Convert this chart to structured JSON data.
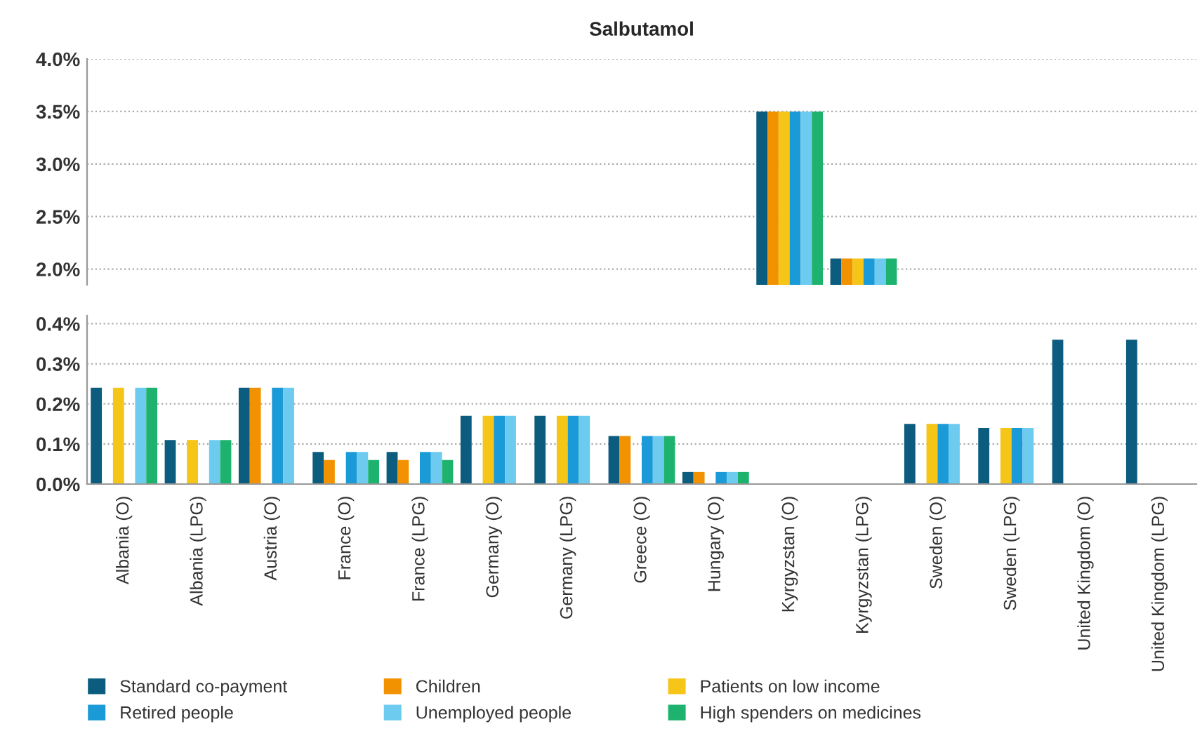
{
  "chart_data": [
    {
      "type": "bar",
      "title": "Salbutamol",
      "tick_labels": "y",
      "grid": "y",
      "categories": [
        null,
        null,
        null,
        null,
        null,
        null,
        null,
        null,
        null,
        null,
        null,
        null,
        null,
        null,
        null
      ],
      "series": [
        {
          "color": "#0b5c7e",
          "values": [
            null,
            null,
            null,
            null,
            null,
            null,
            null,
            null,
            null,
            3.5,
            2.1,
            null,
            null,
            null,
            null
          ]
        },
        {
          "color": "#f39200",
          "values": [
            null,
            null,
            null,
            null,
            null,
            null,
            null,
            null,
            null,
            3.5,
            2.1,
            null,
            null,
            null,
            null
          ]
        },
        {
          "color": "#f5c518",
          "values": [
            null,
            null,
            null,
            null,
            null,
            null,
            null,
            null,
            null,
            3.5,
            2.1,
            null,
            null,
            null,
            null
          ]
        },
        {
          "color": "#1a9ad6",
          "values": [
            null,
            null,
            null,
            null,
            null,
            null,
            null,
            null,
            null,
            3.5,
            2.1,
            null,
            null,
            null,
            null
          ]
        },
        {
          "color": "#6ccbef",
          "values": [
            null,
            null,
            null,
            null,
            null,
            null,
            null,
            null,
            null,
            3.5,
            2.1,
            null,
            null,
            null,
            null
          ]
        },
        {
          "color": "#1db36e",
          "values": [
            null,
            null,
            null,
            null,
            null,
            null,
            null,
            null,
            null,
            3.5,
            2.1,
            null,
            null,
            null,
            null
          ]
        }
      ],
      "ylim": [
        1.85,
        4.0
      ],
      "yticks": [
        {
          "value": 2.0,
          "label": "2.0%"
        },
        {
          "value": 2.5,
          "label": "2.5%"
        },
        {
          "value": 3.0,
          "label": "3.0%"
        },
        {
          "value": 3.5,
          "label": "3.5%"
        },
        {
          "value": 4.0,
          "label": "4.0%"
        }
      ]
    },
    {
      "type": "bar",
      "grid": "y",
      "legend": "bottom",
      "categories": [
        "Albania (O)",
        "Albania (LPG)",
        "Austria (O)",
        "France (O)",
        "France (LPG)",
        "Germany (O)",
        "Germany (LPG)",
        "Greece (O)",
        "Hungary (O)",
        "Kyrgyzstan (O)",
        "Kyrgyzstan (LPG)",
        "Sweden (O)",
        "Sweden (LPG)",
        "United Kingdom (O)",
        "United Kingdom (LPG)"
      ],
      "series": [
        {
          "name": "Standard co-payment",
          "color": "#0b5c7e",
          "values": [
            0.24,
            0.11,
            0.24,
            0.08,
            0.08,
            0.17,
            0.17,
            0.12,
            0.03,
            null,
            null,
            0.15,
            0.14,
            0.36,
            0.36
          ]
        },
        {
          "name": "Children",
          "color": "#f39200",
          "values": [
            null,
            null,
            0.24,
            0.06,
            0.06,
            null,
            null,
            0.12,
            0.03,
            null,
            null,
            null,
            null,
            null,
            null
          ]
        },
        {
          "name": "Patients on low income",
          "color": "#f5c518",
          "values": [
            0.24,
            0.11,
            null,
            null,
            null,
            0.17,
            0.17,
            null,
            null,
            null,
            null,
            0.15,
            0.14,
            null,
            null
          ]
        },
        {
          "name": "Retired people",
          "color": "#1a9ad6",
          "values": [
            null,
            null,
            0.24,
            0.08,
            0.08,
            0.17,
            0.17,
            0.12,
            0.03,
            null,
            null,
            0.15,
            0.14,
            null,
            null
          ]
        },
        {
          "name": "Unemployed people",
          "color": "#6ccbef",
          "values": [
            0.24,
            0.11,
            0.24,
            0.08,
            0.08,
            0.17,
            0.17,
            0.12,
            0.03,
            null,
            null,
            0.15,
            0.14,
            null,
            null
          ]
        },
        {
          "name": "High spenders on medicines",
          "color": "#1db36e",
          "values": [
            0.24,
            0.11,
            null,
            0.06,
            0.06,
            null,
            null,
            0.12,
            0.03,
            null,
            null,
            null,
            null,
            null,
            null
          ]
        }
      ],
      "ylim": [
        0,
        0.42
      ],
      "yticks": [
        {
          "value": 0,
          "label": "0.0%"
        },
        {
          "value": 0.1,
          "label": "0.1%"
        },
        {
          "value": 0.2,
          "label": "0.2%"
        },
        {
          "value": 0.3,
          "label": "0.3%"
        },
        {
          "value": 0.4,
          "label": "0.4%"
        }
      ]
    }
  ]
}
